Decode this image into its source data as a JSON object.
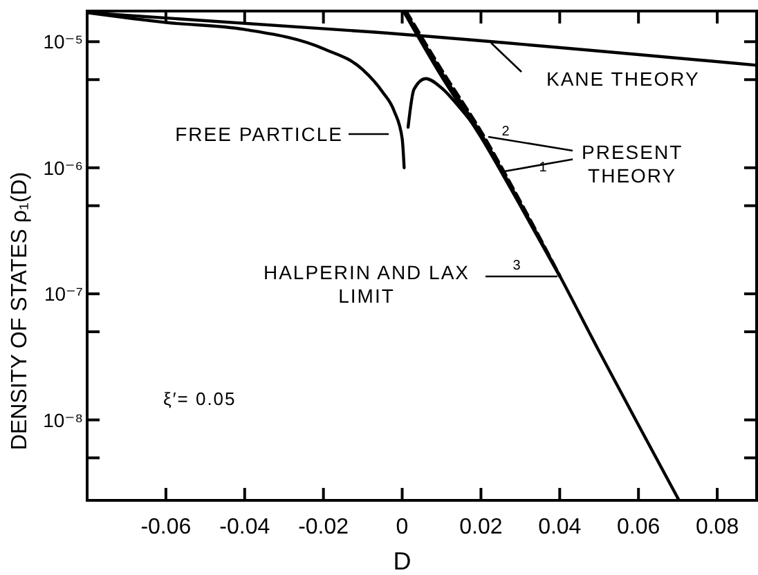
{
  "chart_data": {
    "type": "line",
    "xlabel": "D",
    "ylabel": "DENSITY OF STATES ρ₁(D)",
    "log": "y",
    "grid": false,
    "legend": "top right",
    "xlim": [
      -0.08,
      0.09
    ],
    "ylim": [
      2.3e-09,
      1.75e-05
    ],
    "xticks": [
      -0.06,
      -0.04,
      -0.02,
      {
        "value": 0,
        "label": "0"
      },
      0.02,
      0.04,
      0.06,
      0.08
    ],
    "yticks": [
      {
        "value": 1e-05,
        "label": "10⁻⁵"
      },
      {
        "value": 5e-06,
        "label": null
      },
      {
        "value": 1e-06,
        "label": "10⁻⁶"
      },
      {
        "value": 5e-07,
        "label": null
      },
      {
        "value": 1e-07,
        "label": "10⁻⁷"
      },
      {
        "value": 5e-08,
        "label": null
      },
      {
        "value": 1e-08,
        "label": "10⁻⁸"
      },
      {
        "value": 5e-09,
        "label": null
      }
    ],
    "series": [
      {
        "name": "KANE THEORY",
        "color": "#000000",
        "line_style": "solid",
        "x": [
          -0.08,
          -0.007,
          0.09
        ],
        "values": [
          1.7e-05,
          1.19e-05,
          6.5e-06
        ]
      },
      {
        "name": "FREE PARTICLE",
        "color": "#000000",
        "line_style": "solid",
        "x": [
          -0.08,
          -0.06,
          -0.04,
          -0.02,
          -0.01,
          -0.005,
          -0.002,
          0,
          0.0005,
          null,
          0.0015,
          0.003,
          0.006,
          0.01,
          0.015,
          0.02
        ],
        "values": [
          1.7e-05,
          1.42e-05,
          1.25e-05,
          8.8e-06,
          6e-06,
          4e-06,
          2.8e-06,
          1.7e-06,
          1e-06,
          null,
          2.1e-06,
          4.2e-06,
          5.1e-06,
          4.3e-06,
          2.9e-06,
          1.85e-06
        ]
      },
      {
        "name": "2",
        "color": "#000000",
        "line_style": "dashed",
        "x": [
          0.001,
          0.01,
          0.02,
          0.03,
          0.04
        ],
        "values": [
          1.75e-05,
          6e-06,
          1.95e-06,
          5.4e-07,
          1.4e-07
        ]
      },
      {
        "name": "1",
        "color": "#000000",
        "line_style": "solid",
        "x": [
          0.0007,
          0.01,
          0.02,
          0.03,
          0.04,
          0.05,
          0.06,
          0.0703
        ],
        "values": [
          1.75e-05,
          5.7e-06,
          1.86e-06,
          5.2e-07,
          1.39e-07,
          3.5e-08,
          9.1e-09,
          2.3e-09
        ]
      },
      {
        "name": "3",
        "color": "#000000",
        "line_style": "solid",
        "x": [
          0.0003,
          0.01,
          0.02,
          0.03,
          0.04
        ],
        "values": [
          1.75e-05,
          5.3e-06,
          1.75e-06,
          5e-07,
          1.38e-07
        ]
      }
    ],
    "annotations": [
      {
        "text": "PRESENT THEORY",
        "x": 0.0254,
        "y": 9.3e-07
      },
      "HALPERIN AND LAX LIMIT",
      "ξ′= 0.05"
    ]
  }
}
